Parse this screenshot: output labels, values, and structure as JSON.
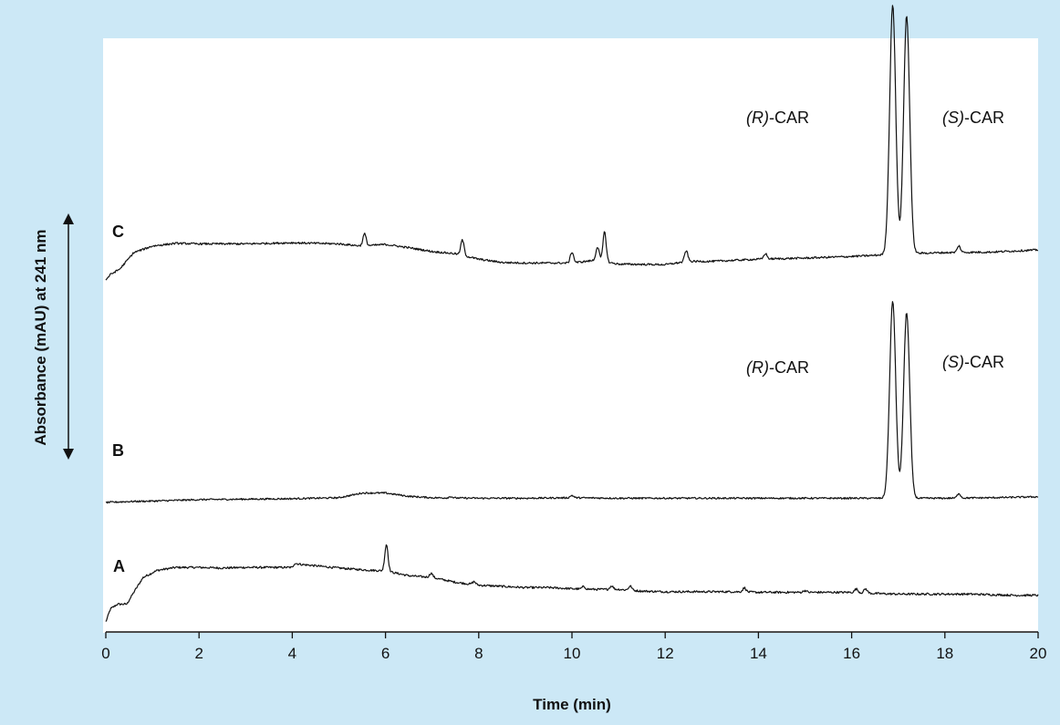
{
  "chart_data": {
    "type": "line",
    "title": "",
    "xlabel": "Time (min)",
    "ylabel": "Absorbance (mAU) at 241 nm",
    "xlim": [
      0,
      20
    ],
    "x_ticks": [
      0,
      2,
      4,
      6,
      8,
      10,
      12,
      14,
      16,
      18,
      20
    ],
    "y_ticks": "none (relative scale arrow)",
    "grid": false,
    "legend": "none",
    "line_color": "#111111",
    "background_color": "#cce8f6",
    "plot_background": "#ffffff",
    "series": [
      {
        "name": "A",
        "baseline": [
          [
            0,
            0
          ],
          [
            0.1,
            0.22
          ],
          [
            0.25,
            0.3
          ],
          [
            0.45,
            0.3
          ],
          [
            0.6,
            0.5
          ],
          [
            0.8,
            0.75
          ],
          [
            1.1,
            0.87
          ],
          [
            1.5,
            0.92
          ],
          [
            2,
            0.92
          ],
          [
            2.5,
            0.91
          ],
          [
            3,
            0.92
          ],
          [
            3.5,
            0.92
          ],
          [
            4,
            0.92
          ],
          [
            4.05,
            0.99
          ],
          [
            4.2,
            0.97
          ],
          [
            4.6,
            0.94
          ],
          [
            5,
            0.91
          ],
          [
            5.5,
            0.88
          ],
          [
            6,
            0.86
          ],
          [
            6.5,
            0.78
          ],
          [
            7,
            0.75
          ],
          [
            7.5,
            0.67
          ],
          [
            8,
            0.62
          ],
          [
            8.5,
            0.6
          ],
          [
            9,
            0.58
          ],
          [
            9.5,
            0.58
          ],
          [
            10,
            0.56
          ],
          [
            10.5,
            0.55
          ],
          [
            11,
            0.55
          ],
          [
            11.5,
            0.52
          ],
          [
            12,
            0.51
          ],
          [
            13,
            0.51
          ],
          [
            13.5,
            0.51
          ],
          [
            14,
            0.5
          ],
          [
            15,
            0.5
          ],
          [
            16,
            0.5
          ],
          [
            16.5,
            0.48
          ],
          [
            17,
            0.47
          ],
          [
            17.5,
            0.47
          ],
          [
            18,
            0.47
          ],
          [
            18.5,
            0.47
          ],
          [
            19,
            0.46
          ],
          [
            19.5,
            0.45
          ],
          [
            20,
            0.45
          ]
        ],
        "peaks": [
          [
            6.02,
            0.45
          ],
          [
            6.98,
            0.07
          ],
          [
            7.9,
            0.05
          ],
          [
            10.25,
            0.04
          ],
          [
            10.85,
            0.06
          ],
          [
            11.25,
            0.07
          ],
          [
            13.7,
            0.07
          ],
          [
            15.0,
            0.03
          ],
          [
            16.1,
            0.06
          ],
          [
            16.3,
            0.07
          ]
        ]
      },
      {
        "name": "B",
        "baseline": [
          [
            0,
            0
          ],
          [
            0.5,
            0.02
          ],
          [
            1,
            0.03
          ],
          [
            2,
            0.06
          ],
          [
            3,
            0.07
          ],
          [
            4,
            0.08
          ],
          [
            5,
            0.1
          ],
          [
            5.5,
            0.2
          ],
          [
            6,
            0.2
          ],
          [
            6.5,
            0.13
          ],
          [
            7,
            0.1
          ],
          [
            8,
            0.09
          ],
          [
            9,
            0.09
          ],
          [
            10,
            0.1
          ],
          [
            11,
            0.09
          ],
          [
            12,
            0.09
          ],
          [
            13,
            0.09
          ],
          [
            14,
            0.09
          ],
          [
            15,
            0.09
          ],
          [
            16,
            0.09
          ],
          [
            16.5,
            0.09
          ],
          [
            17,
            0.09
          ],
          [
            18,
            0.09
          ],
          [
            19,
            0.1
          ],
          [
            20,
            0.12
          ]
        ],
        "peaks": [
          [
            7.4,
            0.03
          ],
          [
            10.0,
            0.05
          ],
          [
            16.88,
            4.15
          ],
          [
            17.18,
            3.92
          ],
          [
            18.3,
            0.1
          ]
        ]
      },
      {
        "name": "C",
        "baseline": [
          [
            0,
            0
          ],
          [
            0.1,
            0.1
          ],
          [
            0.3,
            0.2
          ],
          [
            0.6,
            0.5
          ],
          [
            1,
            0.62
          ],
          [
            1.5,
            0.67
          ],
          [
            2,
            0.66
          ],
          [
            3,
            0.66
          ],
          [
            4,
            0.68
          ],
          [
            5,
            0.66
          ],
          [
            5.5,
            0.62
          ],
          [
            6,
            0.65
          ],
          [
            6.5,
            0.59
          ],
          [
            7,
            0.52
          ],
          [
            7.5,
            0.48
          ],
          [
            8,
            0.38
          ],
          [
            8.5,
            0.32
          ],
          [
            9,
            0.31
          ],
          [
            10,
            0.31
          ],
          [
            10.5,
            0.36
          ],
          [
            11,
            0.29
          ],
          [
            12,
            0.28
          ],
          [
            12.5,
            0.34
          ],
          [
            13,
            0.34
          ],
          [
            14,
            0.38
          ],
          [
            15,
            0.4
          ],
          [
            16,
            0.43
          ],
          [
            16.5,
            0.45
          ],
          [
            17,
            0.48
          ],
          [
            18,
            0.5
          ],
          [
            19,
            0.51
          ],
          [
            20,
            0.55
          ]
        ],
        "peaks": [
          [
            5.55,
            0.22
          ],
          [
            7.65,
            0.28
          ],
          [
            10.0,
            0.2
          ],
          [
            10.55,
            0.25
          ],
          [
            10.7,
            0.55
          ],
          [
            12.45,
            0.2
          ],
          [
            14.15,
            0.1
          ],
          [
            16.88,
            4.55
          ],
          [
            17.18,
            4.35
          ],
          [
            18.3,
            0.12
          ]
        ]
      }
    ],
    "annotations": [
      {
        "text": "(R)-CAR",
        "trace": "C"
      },
      {
        "text": "(S)-CAR",
        "trace": "C"
      },
      {
        "text": "(R)-CAR",
        "trace": "B"
      },
      {
        "text": "(S)-CAR",
        "trace": "B"
      }
    ]
  },
  "labels": {
    "trace_a": "A",
    "trace_b": "B",
    "trace_c": "C",
    "r_prefix": "(R)",
    "s_prefix": "(S)",
    "suffix": "-CAR"
  }
}
